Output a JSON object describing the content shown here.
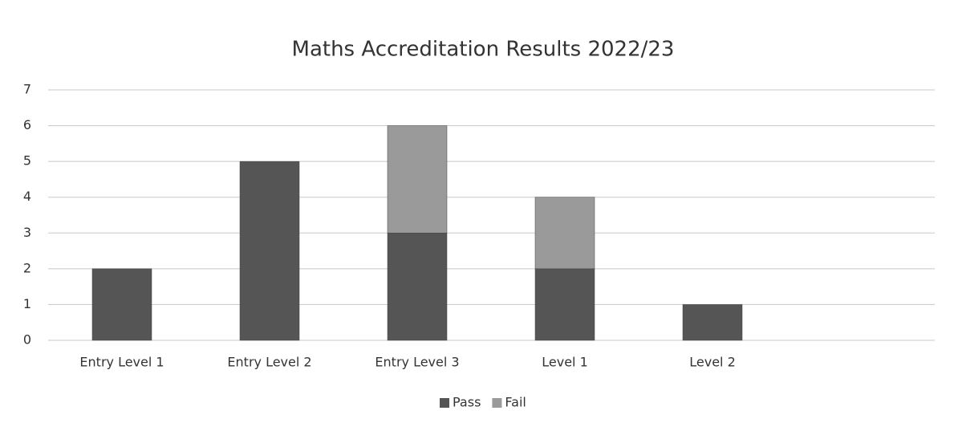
{
  "chart_data": {
    "type": "stacked_bar",
    "title": "Maths Accreditation Results 2022/23",
    "categories": [
      "Entry Level 1",
      "Entry Level 2",
      "Entry Level 3",
      "Level 1",
      "Level 2"
    ],
    "series": [
      {
        "name": "Pass",
        "color": "#555555",
        "values": [
          2,
          5,
          3,
          2,
          1
        ]
      },
      {
        "name": "Fail",
        "color": "#9a9a9a",
        "values": [
          0,
          0,
          3,
          2,
          0
        ]
      }
    ],
    "ylim": [
      0,
      7
    ],
    "yticks": [
      0,
      1,
      2,
      3,
      4,
      5,
      6,
      7
    ],
    "grid": true,
    "legend": "bottom"
  }
}
